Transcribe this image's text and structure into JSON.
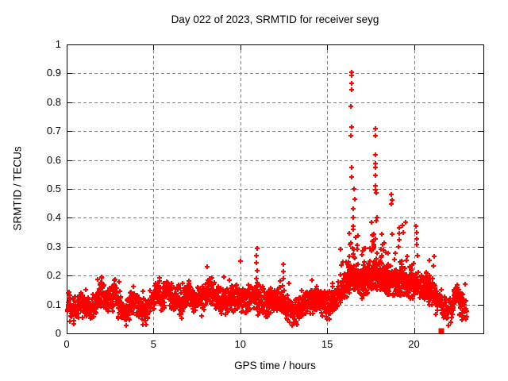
{
  "title": "Day 022 of 2023, SRMTID for receiver seyg",
  "chart_data": {
    "type": "scatter",
    "title": "Day 022 of 2023, SRMTID for receiver seyg",
    "xlabel": "GPS time / hours",
    "ylabel": "SRMTID / TECUs",
    "xlim": [
      0,
      24
    ],
    "ylim": [
      0,
      1
    ],
    "x_ticks": [
      0,
      5,
      10,
      15,
      20
    ],
    "x_tick_labels": [
      "0",
      "5",
      "10",
      "15",
      "20"
    ],
    "y_ticks": [
      0,
      0.1,
      0.2,
      0.3,
      0.4,
      0.5,
      0.6,
      0.7,
      0.8,
      0.9,
      1
    ],
    "y_tick_labels": [
      "0",
      "0.1",
      "0.2",
      "0.3",
      "0.4",
      "0.5",
      "0.6",
      "0.7",
      "0.8",
      "0.9",
      "1"
    ],
    "grid": true,
    "grid_style": "dashed",
    "grid_color": "#808080",
    "marker": "plus",
    "marker_color": "#ff0000",
    "marker_size_px": 7,
    "background": "#ffffff",
    "border_color": "#000000",
    "description": "Dense time series of SRMTID values sampled every ~30 s. Quiet band near 0.1 TECU from 0-15 h, storm enhancement 16-20 h peaking at 0.9 TECU near 16.4 h, decay to ~0.1 by 23 h.",
    "baseline_series": {
      "t_start": 0.05,
      "t_end": 23.05,
      "t_step": 0.01,
      "noise_amp": 0.045,
      "envelope_control_points": [
        [
          0.05,
          0.105
        ],
        [
          0.3,
          0.09
        ],
        [
          0.6,
          0.085
        ],
        [
          0.9,
          0.105
        ],
        [
          1.2,
          0.085
        ],
        [
          1.5,
          0.09
        ],
        [
          1.8,
          0.12
        ],
        [
          2.0,
          0.15
        ],
        [
          2.2,
          0.115
        ],
        [
          2.5,
          0.12
        ],
        [
          2.8,
          0.145
        ],
        [
          3.1,
          0.085
        ],
        [
          3.4,
          0.065
        ],
        [
          3.7,
          0.1
        ],
        [
          4.0,
          0.105
        ],
        [
          4.3,
          0.085
        ],
        [
          4.6,
          0.075
        ],
        [
          4.9,
          0.11
        ],
        [
          5.2,
          0.145
        ],
        [
          5.5,
          0.125
        ],
        [
          5.8,
          0.155
        ],
        [
          6.1,
          0.115
        ],
        [
          6.4,
          0.125
        ],
        [
          6.7,
          0.105
        ],
        [
          7.0,
          0.135
        ],
        [
          7.3,
          0.115
        ],
        [
          7.6,
          0.105
        ],
        [
          7.9,
          0.125
        ],
        [
          8.2,
          0.155
        ],
        [
          8.5,
          0.135
        ],
        [
          8.8,
          0.115
        ],
        [
          9.1,
          0.105
        ],
        [
          9.4,
          0.125
        ],
        [
          9.7,
          0.125
        ],
        [
          10.0,
          0.13
        ],
        [
          10.3,
          0.115
        ],
        [
          10.6,
          0.12
        ],
        [
          10.9,
          0.135
        ],
        [
          11.2,
          0.11
        ],
        [
          11.5,
          0.1
        ],
        [
          11.8,
          0.115
        ],
        [
          12.1,
          0.12
        ],
        [
          12.4,
          0.115
        ],
        [
          12.7,
          0.09
        ],
        [
          13.0,
          0.072
        ],
        [
          13.3,
          0.078
        ],
        [
          13.6,
          0.095
        ],
        [
          13.9,
          0.11
        ],
        [
          14.2,
          0.115
        ],
        [
          14.5,
          0.12
        ],
        [
          14.8,
          0.1
        ],
        [
          15.1,
          0.105
        ],
        [
          15.4,
          0.115
        ],
        [
          15.7,
          0.13
        ],
        [
          16.0,
          0.155
        ],
        [
          16.3,
          0.19
        ],
        [
          16.6,
          0.2
        ],
        [
          16.9,
          0.175
        ],
        [
          17.2,
          0.185
        ],
        [
          17.5,
          0.2
        ],
        [
          17.8,
          0.21
        ],
        [
          18.1,
          0.2
        ],
        [
          18.4,
          0.19
        ],
        [
          18.7,
          0.185
        ],
        [
          19.0,
          0.175
        ],
        [
          19.3,
          0.19
        ],
        [
          19.6,
          0.165
        ],
        [
          19.9,
          0.16
        ],
        [
          20.2,
          0.175
        ],
        [
          20.5,
          0.165
        ],
        [
          20.8,
          0.155
        ],
        [
          21.1,
          0.145
        ],
        [
          21.4,
          0.12
        ],
        [
          21.7,
          0.085
        ],
        [
          22.0,
          0.08
        ],
        [
          22.2,
          0.09
        ],
        [
          22.4,
          0.135
        ],
        [
          22.6,
          0.115
        ],
        [
          22.8,
          0.095
        ],
        [
          23.05,
          0.08
        ]
      ]
    },
    "spike_columns": [
      {
        "t": 10.93,
        "values": [
          0.293,
          0.268,
          0.245,
          0.218,
          0.19
        ]
      },
      {
        "t": 12.48,
        "values": [
          0.239,
          0.214,
          0.19,
          0.166
        ]
      },
      {
        "t": 16.41,
        "values": [
          0.905,
          0.893,
          0.866,
          0.843,
          0.786,
          0.713,
          0.683,
          0.573,
          0.542
        ]
      },
      {
        "t": 16.55,
        "values": [
          0.5,
          0.465,
          0.43,
          0.4,
          0.37
        ]
      },
      {
        "t": 17.78,
        "values": [
          0.71,
          0.685,
          0.617,
          0.587,
          0.573,
          0.548,
          0.51,
          0.498,
          0.487
        ]
      },
      {
        "t": 18.7,
        "values": [
          0.48,
          0.462,
          0.447
        ]
      },
      {
        "t": 19.15,
        "values": [
          0.365,
          0.345,
          0.325,
          0.3
        ]
      },
      {
        "t": 20.15,
        "values": [
          0.37,
          0.348,
          0.328,
          0.308
        ]
      },
      {
        "t": 21.15,
        "values": [
          0.266,
          0.234
        ]
      }
    ],
    "burst_bands": [
      {
        "t_range": [
          15.75,
          16.2
        ],
        "v_range": [
          0.13,
          0.3
        ],
        "count": 22
      },
      {
        "t_range": [
          16.2,
          16.8
        ],
        "v_range": [
          0.15,
          0.45
        ],
        "count": 50
      },
      {
        "t_range": [
          16.9,
          17.35
        ],
        "v_range": [
          0.13,
          0.4
        ],
        "count": 28
      },
      {
        "t_range": [
          17.35,
          18.3
        ],
        "v_range": [
          0.15,
          0.5
        ],
        "count": 75
      },
      {
        "t_range": [
          18.3,
          19.6
        ],
        "v_range": [
          0.13,
          0.4
        ],
        "count": 65
      },
      {
        "t_range": [
          19.6,
          20.6
        ],
        "v_range": [
          0.14,
          0.33
        ],
        "count": 30
      },
      {
        "t_range": [
          20.6,
          21.3
        ],
        "v_range": [
          0.12,
          0.22
        ],
        "count": 15
      }
    ],
    "special_points": [
      {
        "t": 21.58,
        "v": 0.008,
        "marker": "filled-square",
        "color": "#ff0000"
      }
    ],
    "notable_points": [
      [
        16.41,
        0.905
      ],
      [
        16.41,
        0.893
      ],
      [
        16.41,
        0.866
      ],
      [
        16.41,
        0.843
      ],
      [
        16.41,
        0.786
      ],
      [
        17.78,
        0.71
      ],
      [
        10.93,
        0.293
      ],
      [
        12.48,
        0.239
      ],
      [
        21.58,
        0.008
      ]
    ],
    "seed": 20230122
  }
}
